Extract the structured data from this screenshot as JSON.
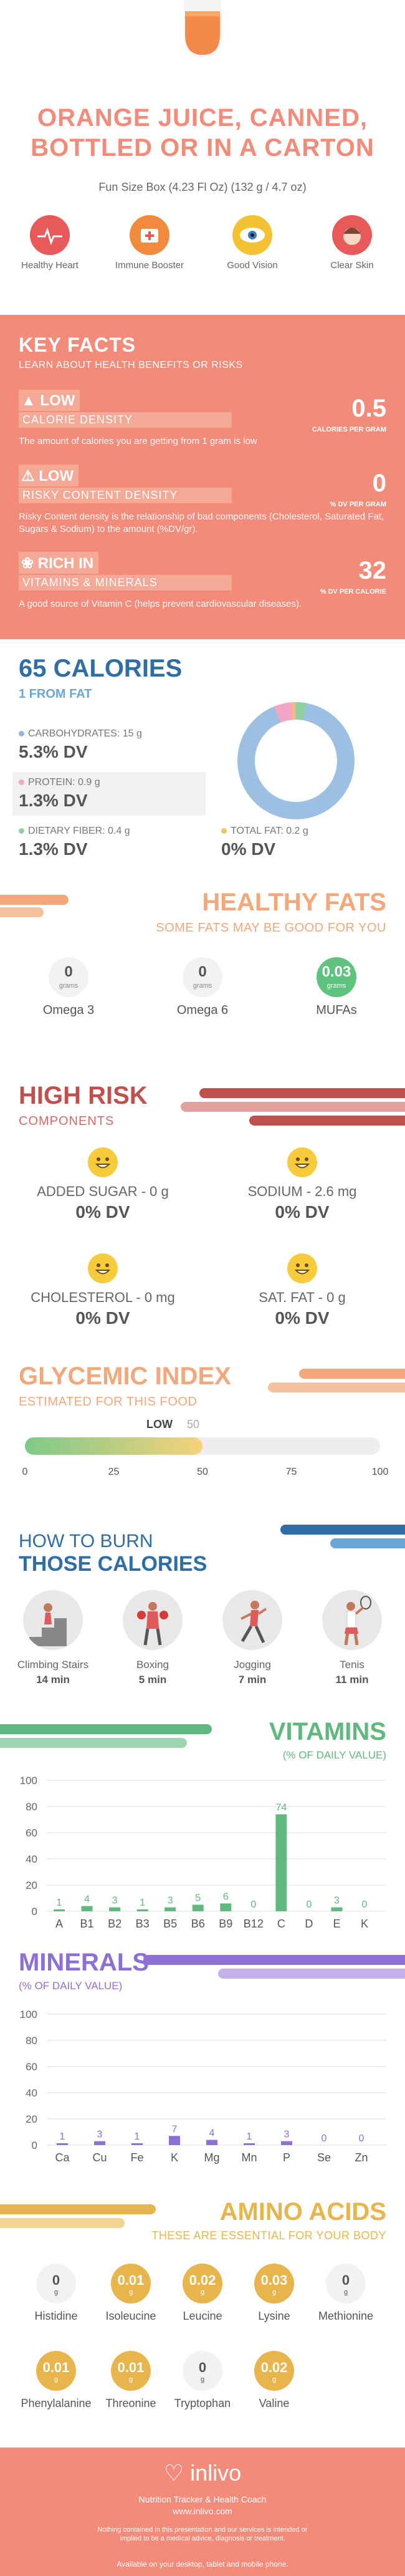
{
  "header": {
    "title": "ORANGE JUICE, CANNED, BOTTLED OR IN A CARTON",
    "serving": "Fun Size Box (4.23 Fl Oz) (132 g / 4.7 oz)"
  },
  "benefits": [
    {
      "label": "Healthy Heart",
      "icon": "heart-monitor-icon",
      "color": "#e85a5a"
    },
    {
      "label": "Immune Booster",
      "icon": "medical-kit-icon",
      "color": "#f08a3c"
    },
    {
      "label": "Good Vision",
      "icon": "eye-icon",
      "color": "#f3c234"
    },
    {
      "label": "Clear Skin",
      "icon": "face-icon",
      "color": "#e85a5a"
    }
  ],
  "key_facts": {
    "title": "KEY FACTS",
    "subtitle": "LEARN ABOUT HEALTH BENEFITS OR RISKS",
    "facts": [
      {
        "level": "LOW",
        "label": "CALORIE DENSITY",
        "value": "0.5",
        "unit": "CALORIES PER GRAM",
        "desc": "The amount of calories you are getting from 1 gram is low",
        "icon": "flame-icon"
      },
      {
        "level": "LOW",
        "label": "RISKY CONTENT DENSITY",
        "value": "0",
        "unit": "% DV PER GRAM",
        "desc": "Risky Content density is the relationship of bad components (Cholesterol, Saturated Fat, Sugars & Sodium) to the amount (%DV/gr).",
        "icon": "warning-icon"
      },
      {
        "level": "RICH IN",
        "label": "VITAMINS & MINERALS",
        "value": "32",
        "unit": "% DV PER CALORIE",
        "desc": "A good source of Vitamin C (helps prevent cardiovascular diseases).",
        "icon": "leaf-icon"
      }
    ]
  },
  "calories": {
    "title": "65 CALORIES",
    "subtitle": "1 FROM FAT",
    "macros": [
      {
        "name": "CARBOHYDRATES: 15 g",
        "dv": "5.3% DV",
        "color": "#8fb8e0"
      },
      {
        "name": "PROTEIN: 0.9 g",
        "dv": "1.3% DV",
        "color": "#f3a6c4"
      },
      {
        "name": "DIETARY FIBER: 0.4 g",
        "dv": "1.3% DV",
        "color": "#8fd19e"
      },
      {
        "name": "TOTAL FAT: 0.2 g",
        "dv": "0% DV",
        "color": "#f6c15a"
      }
    ]
  },
  "healthy_fats": {
    "title": "HEALTHY FATS",
    "subtitle": "SOME FATS MAY BE GOOD FOR YOU",
    "items": [
      {
        "name": "Omega 3",
        "value": "0",
        "unit": "grams"
      },
      {
        "name": "Omega 6",
        "value": "0",
        "unit": "grams"
      },
      {
        "name": "MUFAs",
        "value": "0.03",
        "unit": "grams"
      }
    ]
  },
  "high_risk": {
    "title": "HIGH RISK",
    "subtitle": "COMPONENTS",
    "items": [
      {
        "name": "ADDED SUGAR - 0 g",
        "dv": "0% DV"
      },
      {
        "name": "SODIUM - 2.6 mg",
        "dv": "0% DV"
      },
      {
        "name": "CHOLESTEROL - 0 mg",
        "dv": "0% DV"
      },
      {
        "name": "SAT. FAT - 0 g",
        "dv": "0% DV"
      }
    ]
  },
  "glycemic": {
    "title": "GLYCEMIC INDEX",
    "subtitle": "ESTIMATED FOR THIS FOOD",
    "level": "LOW",
    "value": 50,
    "value_label": "50",
    "ticks": [
      "0",
      "25",
      "50",
      "75",
      "100"
    ]
  },
  "burn": {
    "title_line1": "HOW TO BURN",
    "title_line2": "THOSE CALORIES",
    "activities": [
      {
        "name": "Climbing Stairs",
        "minutes": "14 min"
      },
      {
        "name": "Boxing",
        "minutes": "5 min"
      },
      {
        "name": "Jogging",
        "minutes": "7 min"
      },
      {
        "name": "Tenis",
        "minutes": "11 min"
      }
    ]
  },
  "vitamins": {
    "title": "VITAMINS",
    "subtitle": "(% OF DAILY VALUE)",
    "colors": {
      "bar": "#5fb87e",
      "title": "#5fb87e"
    }
  },
  "minerals": {
    "title": "MINERALS",
    "subtitle": "(% OF DAILY VALUE)",
    "colors": {
      "bar": "#8e6fd6",
      "title": "#8e6fd6"
    }
  },
  "chart_data": [
    {
      "type": "bar",
      "title": "VITAMINS",
      "categories": [
        "A",
        "B1",
        "B2",
        "B3",
        "B5",
        "B6",
        "B9",
        "B12",
        "C",
        "D",
        "E",
        "K"
      ],
      "values": [
        1,
        4,
        3,
        1,
        3,
        5,
        6,
        0,
        74,
        0,
        3,
        0
      ],
      "yticks": [
        "0",
        "20",
        "40",
        "60",
        "80",
        "100"
      ],
      "ylim": [
        0,
        100
      ]
    },
    {
      "type": "bar",
      "title": "MINERALS",
      "categories": [
        "Ca",
        "Cu",
        "Fe",
        "K",
        "Mg",
        "Mn",
        "P",
        "Se",
        "Zn"
      ],
      "values": [
        1,
        3,
        1,
        7,
        4,
        1,
        3,
        0,
        0
      ],
      "yticks": [
        "0",
        "20",
        "40",
        "60",
        "80",
        "100"
      ],
      "ylim": [
        0,
        100
      ]
    }
  ],
  "amino_acids": {
    "title": "AMINO ACIDS",
    "subtitle": "THESE ARE ESSENTIAL FOR YOUR BODY",
    "items": [
      {
        "name": "Histidine",
        "value": "0",
        "unit": "g",
        "active": false
      },
      {
        "name": "Isoleucine",
        "value": "0.01",
        "unit": "g",
        "active": true
      },
      {
        "name": "Leucine",
        "value": "0.02",
        "unit": "g",
        "active": true
      },
      {
        "name": "Lysine",
        "value": "0.03",
        "unit": "g",
        "active": true
      },
      {
        "name": "Methionine",
        "value": "0",
        "unit": "g",
        "active": false
      },
      {
        "name": "Phenylalanine",
        "value": "0.01",
        "unit": "g",
        "active": true
      },
      {
        "name": "Threonine",
        "value": "0.01",
        "unit": "g",
        "active": true
      },
      {
        "name": "Tryptophan",
        "value": "0",
        "unit": "g",
        "active": false
      },
      {
        "name": "Valine",
        "value": "0.02",
        "unit": "g",
        "active": true
      }
    ]
  },
  "footer": {
    "brand": "inlivo",
    "tagline": "Nutrition Tracker & Health Coach",
    "url": "www.inlivo.com",
    "disclaimer": "Nothing contained in this presentation and our services is intended or implied to be a medical advice, diagnosis or treatment.",
    "available": "Available on your desktop, tablet and mobile phone."
  }
}
